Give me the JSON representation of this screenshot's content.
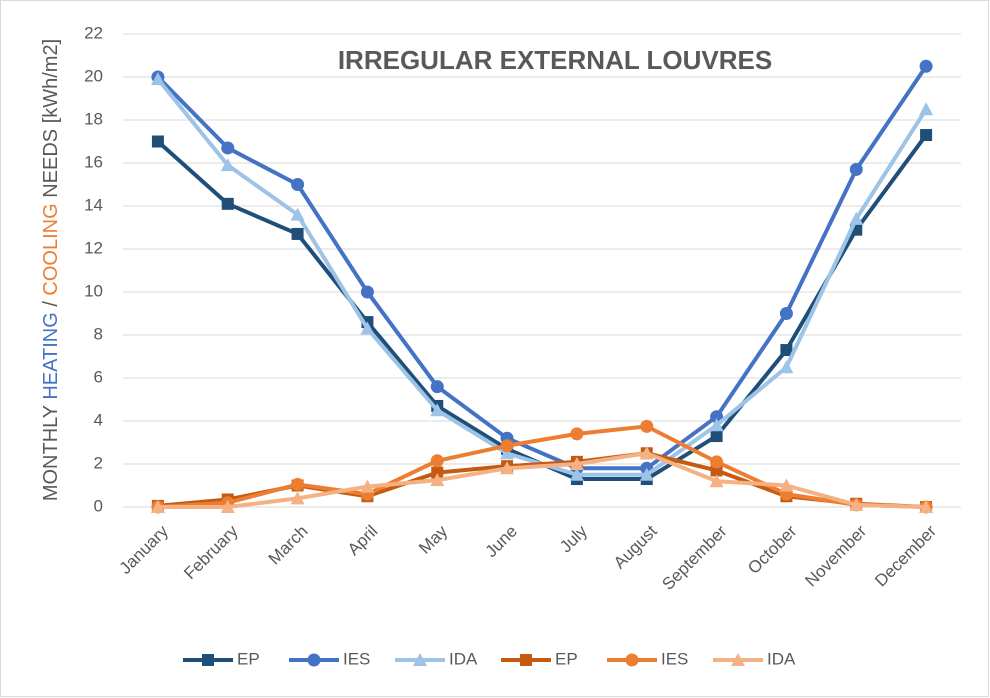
{
  "chart_data": {
    "type": "line",
    "title": "IRREGULAR EXTERNAL LOUVRES",
    "ylabel_parts": [
      {
        "text": "MONTHLY ",
        "color": "#595959"
      },
      {
        "text": "HEATING",
        "color": "#4472c4"
      },
      {
        "text": " / ",
        "color": "#595959"
      },
      {
        "text": "COOLING",
        "color": "#ed7d31"
      },
      {
        "text": " NEEDS [kWh/m2]",
        "color": "#595959"
      }
    ],
    "categories": [
      "January",
      "February",
      "March",
      "April",
      "May",
      "June",
      "July",
      "August",
      "September",
      "October",
      "November",
      "December"
    ],
    "series": [
      {
        "name": "EP",
        "color": "#1f4e79",
        "marker": "square",
        "values": [
          17,
          14.1,
          12.7,
          8.6,
          4.7,
          2.7,
          1.3,
          1.3,
          3.3,
          7.3,
          12.9,
          17.3
        ]
      },
      {
        "name": "IES",
        "color": "#4472c4",
        "marker": "circle",
        "values": [
          20,
          16.7,
          15,
          10,
          5.6,
          3.2,
          1.8,
          1.8,
          4.2,
          9,
          15.7,
          20.5
        ]
      },
      {
        "name": "IDA",
        "color": "#9dc3e6",
        "marker": "triangle",
        "values": [
          19.9,
          15.9,
          13.6,
          8.3,
          4.5,
          2.5,
          1.5,
          1.5,
          3.8,
          6.5,
          13.4,
          18.5
        ]
      },
      {
        "name": "EP",
        "color": "#c55a11",
        "marker": "square",
        "values": [
          0.05,
          0.35,
          1.0,
          0.5,
          1.6,
          1.9,
          2.1,
          2.5,
          1.7,
          0.5,
          0.15,
          0
        ]
      },
      {
        "name": "IES",
        "color": "#ed7d31",
        "marker": "circle",
        "values": [
          0,
          0.2,
          1.05,
          0.6,
          2.15,
          2.85,
          3.4,
          3.75,
          2.1,
          0.6,
          0.1,
          0
        ]
      },
      {
        "name": "IDA",
        "color": "#f4b183",
        "marker": "triangle",
        "values": [
          0,
          0,
          0.4,
          0.95,
          1.25,
          1.8,
          2.0,
          2.5,
          1.2,
          1.0,
          0.1,
          0
        ]
      }
    ],
    "ylim": [
      0,
      22
    ],
    "yticks": [
      0,
      2,
      4,
      6,
      8,
      10,
      12,
      14,
      16,
      18,
      20,
      22
    ],
    "grid": true,
    "legend": "bottom"
  }
}
